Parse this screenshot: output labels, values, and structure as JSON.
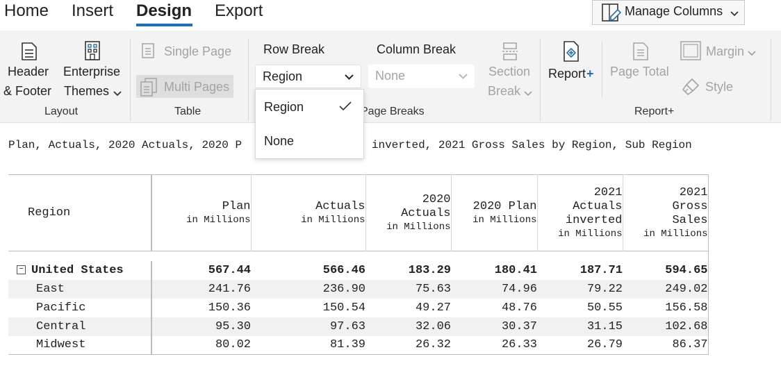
{
  "menu_tabs": [
    {
      "label": "Home",
      "active": false
    },
    {
      "label": "Insert",
      "active": false
    },
    {
      "label": "Design",
      "active": true
    },
    {
      "label": "Export",
      "active": false
    }
  ],
  "accent_color": "#1f6fbf",
  "manage_columns": {
    "label": "Manage Columns",
    "icon": "edit-columns-icon"
  },
  "ribbon": {
    "layout": {
      "group_label": "Layout",
      "header_footer": {
        "line1": "Header",
        "line2": "& Footer",
        "icon": "document-header-icon"
      },
      "enterprise_themes": {
        "line1": "Enterprise",
        "line2": "Themes",
        "icon": "grid-building-icon"
      }
    },
    "table": {
      "group_label": "Table",
      "single_page": {
        "label": "Single Page",
        "icon": "single-page-icon"
      },
      "multi_pages": {
        "label": "Multi Pages",
        "icon": "multi-pages-icon"
      }
    },
    "page_breaks": {
      "group_label": "Page Breaks",
      "row_break": {
        "label": "Row Break",
        "value": "Region"
      },
      "column_break": {
        "label": "Column Break",
        "value": "None"
      },
      "section_break": {
        "line1": "Section",
        "line2": "Break",
        "icon": "section-break-icon"
      }
    },
    "report_plus": {
      "group_label": "Report+",
      "report_plus": {
        "label": "Report",
        "plus": "+",
        "icon": "report-plus-icon"
      },
      "page_total": {
        "line1": "Page Total",
        "icon": "page-total-icon"
      },
      "margin": {
        "label": "Margin",
        "icon": "margin-icon"
      },
      "style": {
        "label": "Style",
        "icon": "paintbrush-icon"
      }
    }
  },
  "row_break_dropdown": {
    "options": [
      {
        "label": "Region",
        "selected": true
      },
      {
        "label": "None",
        "selected": false
      }
    ]
  },
  "report": {
    "subtitle_left": "Plan, Actuals, 2020 Actuals, 2020 P",
    "subtitle_right": "ls inverted, 2021 Gross Sales by Region, Sub Region",
    "columns": [
      {
        "name": "Region",
        "unit": ""
      },
      {
        "name": "Plan",
        "unit": "in Millions"
      },
      {
        "name": "Actuals",
        "unit": "in Millions"
      },
      {
        "name": "2020 Actuals",
        "unit": "in Millions"
      },
      {
        "name": "2020 Plan",
        "unit": "in Millions"
      },
      {
        "name": "2021 Actuals inverted",
        "unit": "in Millions"
      },
      {
        "name": "2021 Gross Sales",
        "unit": "in Millions"
      }
    ],
    "rows": [
      {
        "region": "United States",
        "total": true,
        "values": [
          "567.44",
          "566.46",
          "183.29",
          "180.41",
          "187.71",
          "594.65"
        ]
      },
      {
        "region": "East",
        "total": false,
        "values": [
          "241.76",
          "236.90",
          "75.63",
          "74.96",
          "79.22",
          "249.02"
        ]
      },
      {
        "region": "Pacific",
        "total": false,
        "values": [
          "150.36",
          "150.54",
          "49.27",
          "48.76",
          "50.55",
          "156.58"
        ]
      },
      {
        "region": "Central",
        "total": false,
        "values": [
          "95.30",
          "97.63",
          "32.06",
          "30.37",
          "31.15",
          "102.68"
        ]
      },
      {
        "region": "Midwest",
        "total": false,
        "values": [
          "80.02",
          "81.39",
          "26.32",
          "26.33",
          "26.79",
          "86.37"
        ]
      }
    ]
  }
}
